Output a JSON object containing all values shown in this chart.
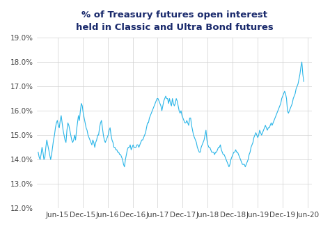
{
  "title_line1": "% of Treasury futures open interest",
  "title_line2": "held in Classic and Ultra Bond futures",
  "title_color": "#1a2a6c",
  "line_color": "#29b5e8",
  "background_color": "#ffffff",
  "grid_color": "#d0d0d0",
  "ylim": [
    12.0,
    19.0
  ],
  "yticks": [
    12.0,
    13.0,
    14.0,
    15.0,
    16.0,
    17.0,
    18.0,
    19.0
  ],
  "xtick_labels": [
    "Jun-15",
    "Dec-15",
    "Jun-16",
    "Dec-16",
    "Jun-17",
    "Dec-17",
    "Jun-18",
    "Dec-18",
    "Jun-19",
    "Dec-19",
    "Jun-20"
  ],
  "data_points": [
    14.3,
    14.1,
    14.0,
    14.2,
    14.5,
    14.3,
    14.0,
    14.1,
    14.5,
    14.8,
    14.6,
    14.4,
    14.2,
    14.0,
    14.2,
    14.5,
    14.8,
    15.0,
    15.3,
    15.5,
    15.6,
    15.4,
    15.3,
    15.6,
    15.8,
    15.5,
    15.2,
    15.0,
    14.8,
    14.7,
    15.2,
    15.5,
    15.4,
    15.2,
    15.0,
    14.8,
    14.7,
    14.8,
    15.0,
    14.8,
    15.2,
    15.5,
    15.8,
    15.6,
    16.0,
    16.3,
    16.2,
    15.9,
    15.7,
    15.5,
    15.3,
    15.2,
    15.0,
    14.9,
    14.8,
    14.7,
    14.6,
    14.8,
    14.7,
    14.5,
    14.7,
    14.8,
    15.0,
    15.0,
    15.3,
    15.5,
    15.6,
    15.3,
    15.0,
    14.8,
    14.7,
    14.8,
    14.9,
    15.0,
    15.2,
    15.3,
    15.0,
    14.8,
    14.7,
    14.5,
    14.5,
    14.4,
    14.4,
    14.3,
    14.3,
    14.2,
    14.2,
    14.1,
    14.0,
    13.8,
    13.7,
    14.0,
    14.2,
    14.4,
    14.5,
    14.5,
    14.6,
    14.4,
    14.5,
    14.6,
    14.5,
    14.5,
    14.5,
    14.6,
    14.6,
    14.5,
    14.6,
    14.7,
    14.8,
    14.8,
    14.9,
    15.0,
    15.1,
    15.3,
    15.5,
    15.5,
    15.7,
    15.8,
    15.9,
    16.0,
    16.1,
    16.2,
    16.3,
    16.4,
    16.5,
    16.5,
    16.4,
    16.3,
    16.2,
    16.0,
    16.2,
    16.4,
    16.5,
    16.6,
    16.5,
    16.5,
    16.3,
    16.5,
    16.3,
    16.2,
    16.5,
    16.3,
    16.2,
    16.3,
    16.5,
    16.4,
    16.2,
    16.0,
    15.9,
    16.0,
    15.8,
    15.7,
    15.6,
    15.5,
    15.5,
    15.6,
    15.5,
    15.4,
    15.7,
    15.7,
    15.4,
    15.2,
    15.0,
    14.9,
    14.8,
    14.7,
    14.5,
    14.4,
    14.3,
    14.3,
    14.5,
    14.6,
    14.7,
    14.8,
    15.0,
    15.2,
    14.8,
    14.6,
    14.5,
    14.5,
    14.4,
    14.3,
    14.3,
    14.3,
    14.2,
    14.3,
    14.3,
    14.4,
    14.5,
    14.5,
    14.6,
    14.4,
    14.3,
    14.2,
    14.2,
    14.1,
    14.0,
    13.9,
    13.8,
    13.7,
    13.8,
    14.0,
    14.1,
    14.2,
    14.3,
    14.3,
    14.4,
    14.3,
    14.3,
    14.2,
    14.1,
    14.0,
    13.9,
    13.8,
    13.8,
    13.8,
    13.7,
    13.8,
    13.9,
    14.0,
    14.2,
    14.3,
    14.5,
    14.6,
    14.7,
    14.9,
    15.0,
    15.1,
    15.0,
    14.9,
    15.0,
    15.2,
    15.1,
    15.0,
    15.1,
    15.2,
    15.3,
    15.4,
    15.3,
    15.2,
    15.3,
    15.3,
    15.4,
    15.5,
    15.4,
    15.5,
    15.6,
    15.7,
    15.8,
    15.9,
    16.0,
    16.1,
    16.2,
    16.3,
    16.5,
    16.6,
    16.7,
    16.8,
    16.7,
    16.5,
    16.0,
    15.9,
    16.0,
    16.1,
    16.2,
    16.3,
    16.5,
    16.6,
    16.7,
    16.9,
    17.0,
    17.1,
    17.3,
    17.5,
    17.8,
    18.0,
    17.5,
    17.2
  ]
}
